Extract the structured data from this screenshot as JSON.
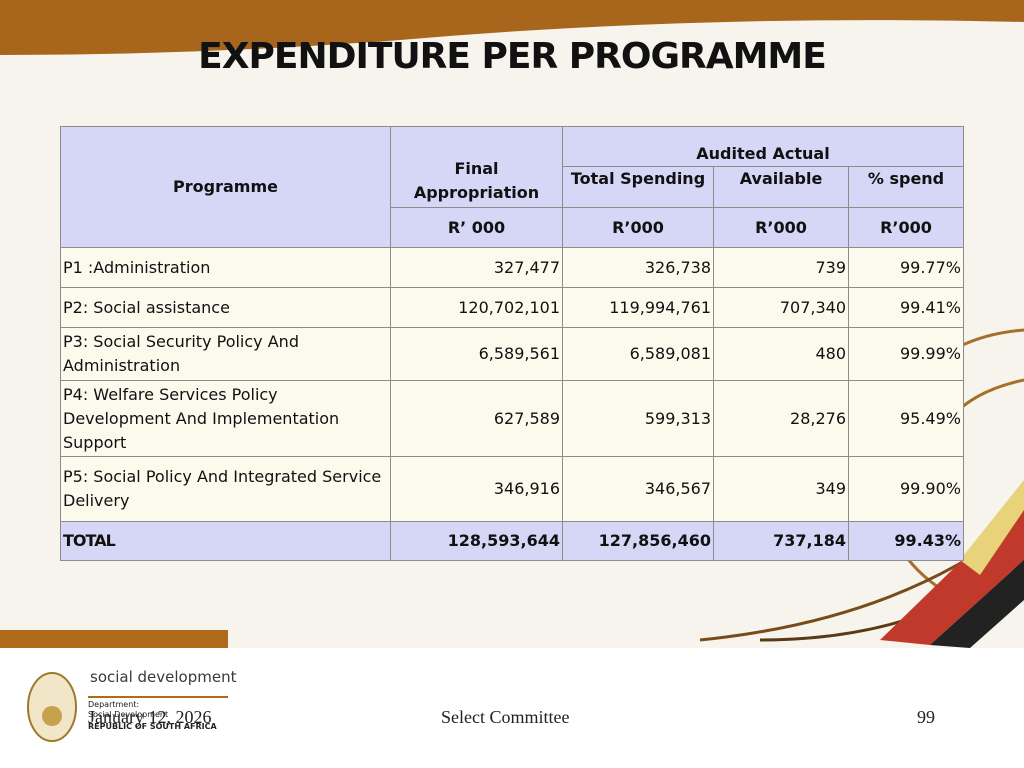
{
  "header": {
    "title": "EXPENDITURE PER PROGRAMME"
  },
  "table": {
    "header": {
      "programme": "Programme",
      "final_appropriation": "Final Appropriation",
      "audited_actual": "Audited Actual",
      "columns": [
        "Total Spending",
        "Available",
        "% spend"
      ],
      "units": [
        "R’ 000",
        "R’000",
        "R’000",
        "R’000"
      ]
    },
    "rows": [
      [
        "P1 :Administration",
        "327,477",
        "326,738",
        "739",
        "99.77%"
      ],
      [
        "P2: Social assistance",
        "120,702,101",
        "119,994,761",
        "707,340",
        "99.41%"
      ],
      [
        "P3: Social Security Policy And Administration",
        "6,589,561",
        "6,589,081",
        "480",
        "99.99%"
      ],
      [
        "P4: Welfare Services Policy Development And Implementation Support",
        "627,589",
        "599,313",
        "28,276",
        "95.49%"
      ],
      [
        "P5: Social Policy And Integrated Service Delivery",
        "346,916",
        "346,567",
        "349",
        "99.90%"
      ]
    ],
    "total": [
      "TOTAL",
      "128,593,644",
      "127,856,460",
      "737,184",
      "99.43%"
    ]
  },
  "footer": {
    "date": "January 12, 2026",
    "committee": "Select Committee",
    "page": 99
  },
  "logo": {
    "name": "social development",
    "department": "Department:",
    "department_name": "Social Development",
    "country": "REPUBLIC OF SOUTH AFRICA"
  }
}
